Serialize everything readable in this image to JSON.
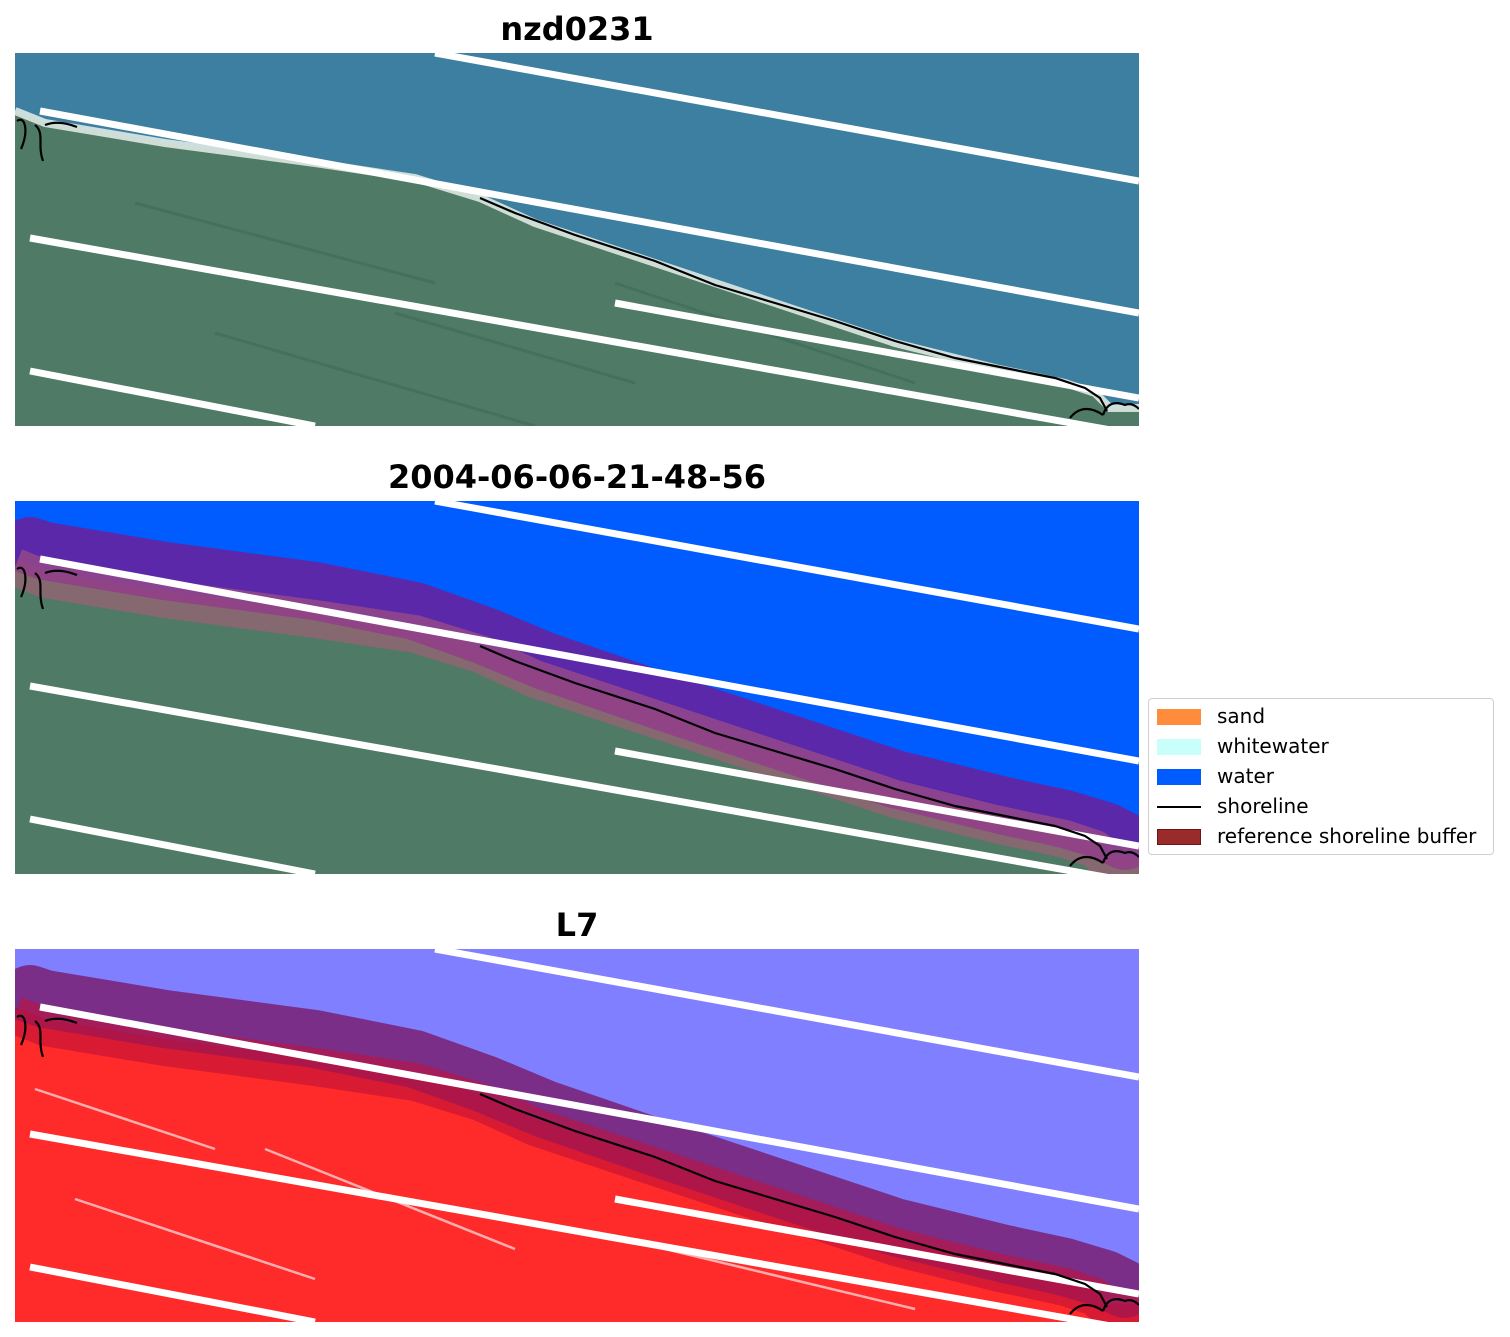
{
  "titles": {
    "panel1": "nzd0231",
    "panel2": "2004-06-06-21-48-56",
    "panel3": "L7"
  },
  "legend": [
    {
      "label": "sand",
      "color": "#ff8c3b",
      "kind": "patch"
    },
    {
      "label": "whitewater",
      "color": "#c8fffa",
      "kind": "patch"
    },
    {
      "label": "water",
      "color": "#005cff",
      "kind": "patch"
    },
    {
      "label": "shoreline",
      "color": "#000000",
      "kind": "line"
    },
    {
      "label": "reference shoreline buffer",
      "color": "#9a2b2b",
      "kind": "patch"
    }
  ],
  "colors": {
    "sea": "#3d7fa0",
    "land": "#4e7a66",
    "water_class": "#005cff",
    "buffer": "#6a1e9a",
    "index_water": "#7f7fff",
    "index_land": "#ff2a2a",
    "shoreline": "#000000"
  }
}
